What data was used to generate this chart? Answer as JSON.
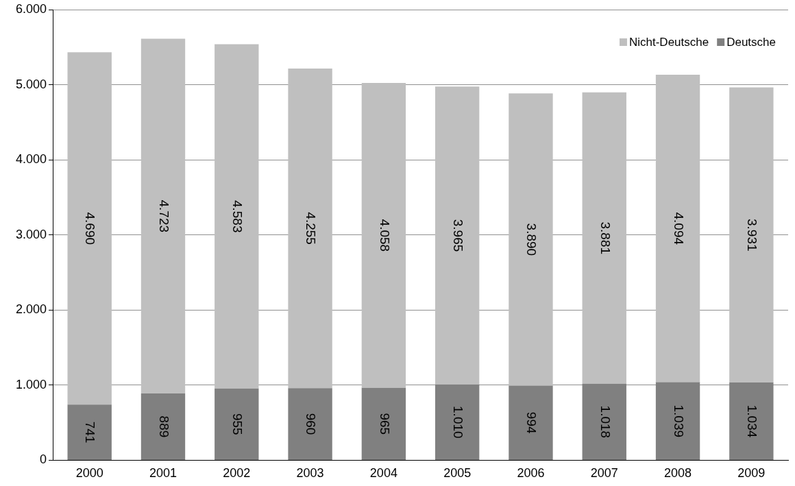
{
  "chart_data": {
    "type": "bar",
    "stacked": true,
    "categories": [
      "2000",
      "2001",
      "2002",
      "2003",
      "2004",
      "2005",
      "2006",
      "2007",
      "2008",
      "2009"
    ],
    "series": [
      {
        "name": "Deutsche",
        "color": "#808080",
        "values": [
          741,
          889,
          955,
          960,
          965,
          1010,
          994,
          1018,
          1039,
          1034
        ],
        "value_labels": [
          "741",
          "889",
          "955",
          "960",
          "965",
          "1.010",
          "994",
          "1.018",
          "1.039",
          "1.034"
        ]
      },
      {
        "name": "Nicht-Deutsche",
        "color": "#bfbfbf",
        "values": [
          4690,
          4723,
          4583,
          4255,
          4058,
          3965,
          3890,
          3881,
          4094,
          3931
        ],
        "value_labels": [
          "4.690",
          "4.723",
          "4.583",
          "4.255",
          "4.058",
          "3.965",
          "3.890",
          "3.881",
          "4.094",
          "3.931"
        ]
      }
    ],
    "ylim": [
      0,
      6000
    ],
    "yticks": [
      0,
      {
        "value": 1000,
        "label": "1.000"
      },
      {
        "value": 2000,
        "label": "2.000"
      },
      {
        "value": 3000,
        "label": "3.000"
      },
      {
        "value": 4000,
        "label": "4.000"
      },
      {
        "value": 5000,
        "label": "5.000"
      },
      {
        "value": 6000,
        "label": "6.000"
      }
    ],
    "grid": "y",
    "legend": "top right"
  }
}
